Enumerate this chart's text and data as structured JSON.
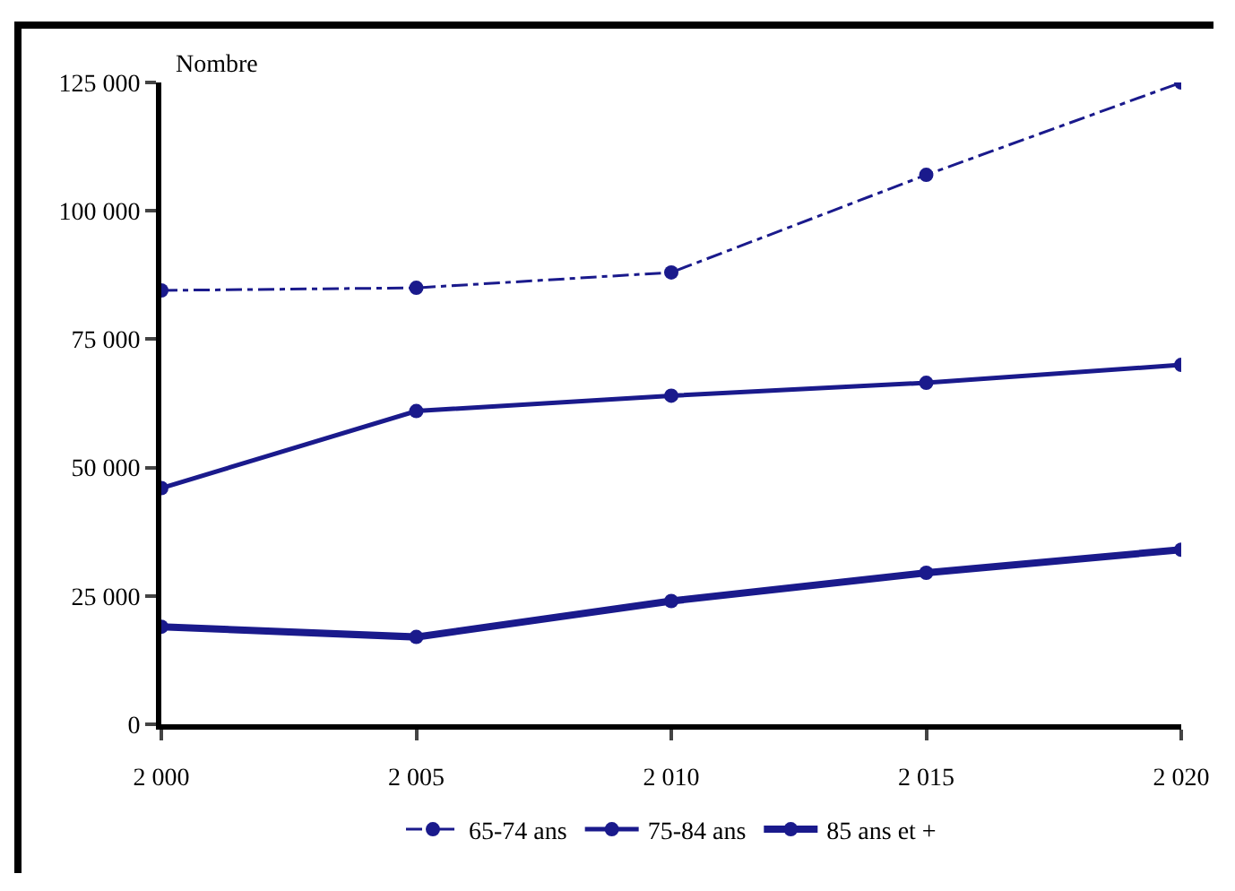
{
  "chart_data": {
    "type": "line",
    "ylabel": "Nombre",
    "x": [
      2000,
      2005,
      2010,
      2015,
      2020
    ],
    "series": [
      {
        "name": "65-74 ans",
        "color": "#1a1a8c",
        "line_style": "dashed",
        "values": [
          84500,
          85000,
          88000,
          107000,
          125000
        ]
      },
      {
        "name": "75-84 ans",
        "color": "#1a1a8c",
        "line_style": "solid",
        "values": [
          46000,
          61000,
          64000,
          66500,
          70000
        ]
      },
      {
        "name": "85 ans et +",
        "color": "#1a1a8c",
        "line_style": "solid",
        "values": [
          19000,
          17000,
          24000,
          29500,
          34000
        ]
      }
    ],
    "xlim": [
      2000,
      2020
    ],
    "xticks": [
      {
        "value": 2000,
        "label": "2 000"
      },
      {
        "value": 2005,
        "label": "2 005"
      },
      {
        "value": 2010,
        "label": "2 010"
      },
      {
        "value": 2015,
        "label": "2 015"
      },
      {
        "value": 2020,
        "label": "2 020"
      }
    ],
    "ylim": [
      0,
      125000
    ],
    "yticks": [
      0,
      {
        "value": 25000,
        "label": "25 000"
      },
      {
        "value": 50000,
        "label": "50 000"
      },
      {
        "value": 75000,
        "label": "75 000"
      },
      {
        "value": 100000,
        "label": "100 000"
      },
      {
        "value": 125000,
        "label": "125 000"
      }
    ],
    "marker": "circle",
    "grid": false,
    "legend": "bottom"
  }
}
